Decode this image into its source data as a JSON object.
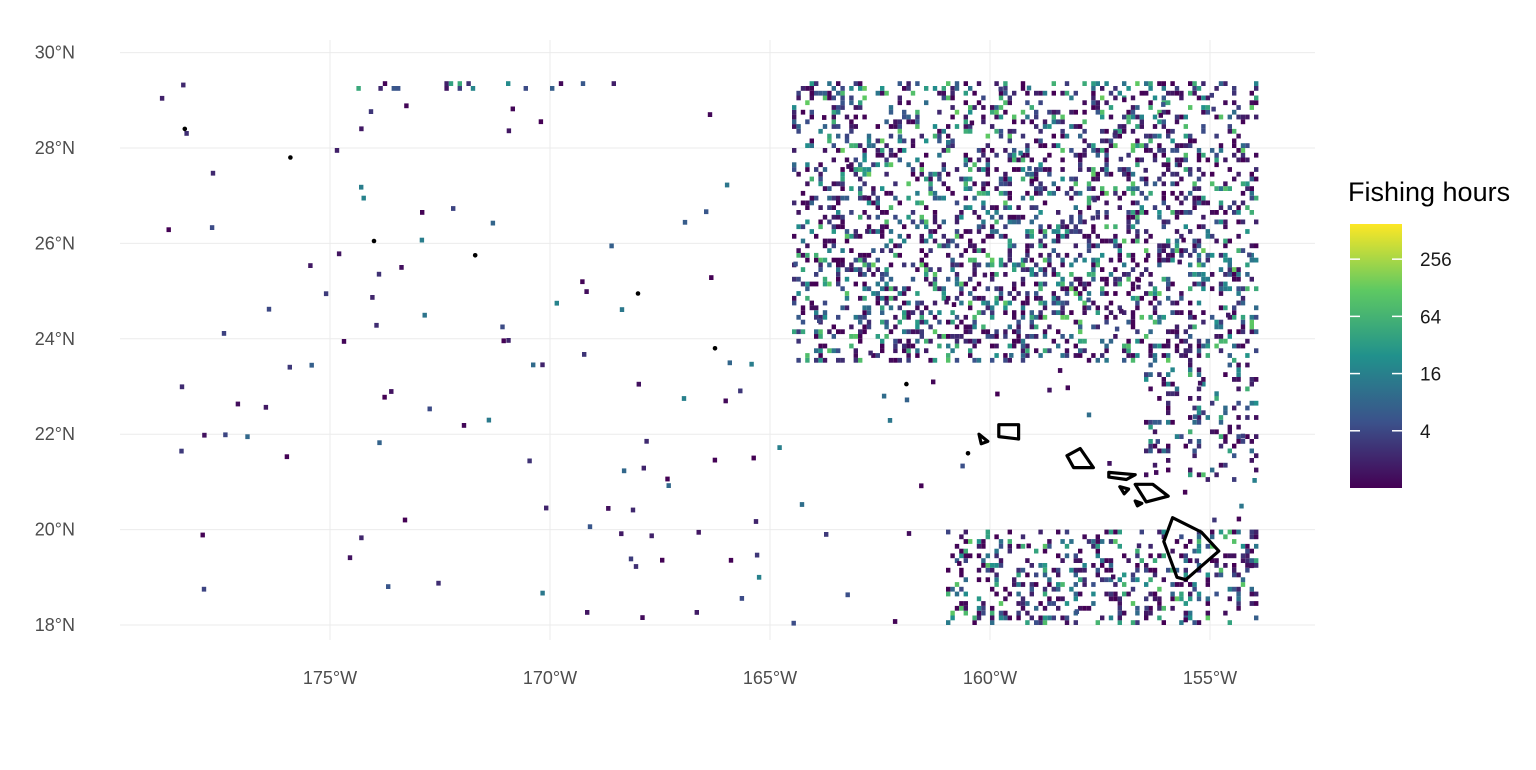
{
  "map": {
    "type": "raster-heatmap",
    "projection": "equirectangular",
    "x_axis": {
      "ticks": [
        {
          "value": -175,
          "label": "175°W"
        },
        {
          "value": -170,
          "label": "170°W"
        },
        {
          "value": -165,
          "label": "165°W"
        },
        {
          "value": -160,
          "label": "160°W"
        },
        {
          "value": -155,
          "label": "155°W"
        }
      ]
    },
    "y_axis": {
      "ticks": [
        {
          "value": 18,
          "label": "18°N"
        },
        {
          "value": 20,
          "label": "20°N"
        },
        {
          "value": 22,
          "label": "22°N"
        },
        {
          "value": 24,
          "label": "24°N"
        },
        {
          "value": 26,
          "label": "26°N"
        },
        {
          "value": 28,
          "label": "28°N"
        },
        {
          "value": 30,
          "label": "30°N"
        }
      ]
    },
    "grid": true,
    "legend": {
      "title": "Fishing hours",
      "position": "right",
      "scale": "log",
      "breaks": [
        {
          "value": 4,
          "label": "4"
        },
        {
          "value": 16,
          "label": "16"
        },
        {
          "value": 64,
          "label": "64"
        },
        {
          "value": 256,
          "label": "256"
        }
      ],
      "palette": [
        "#440154",
        "#3b528b",
        "#21918c",
        "#5ec962",
        "#fde725"
      ]
    },
    "land_outline_color": "#000000",
    "fishing_regions": [
      {
        "lon": [
          -164.5,
          -154
        ],
        "lat": [
          23.5,
          29.4
        ],
        "weight": 0.55,
        "intensity": 0.42
      },
      {
        "lon": [
          -161,
          -154
        ],
        "lat": [
          18,
          20
        ],
        "weight": 0.5,
        "intensity": 0.4
      },
      {
        "lon": [
          -156.5,
          -154
        ],
        "lat": [
          21,
          23.5
        ],
        "weight": 0.35,
        "intensity": 0.35
      },
      {
        "lon": [
          -174.5,
          -168.5
        ],
        "lat": [
          29.2,
          29.4
        ],
        "weight": 0.3,
        "intensity": 0.3
      }
    ]
  }
}
